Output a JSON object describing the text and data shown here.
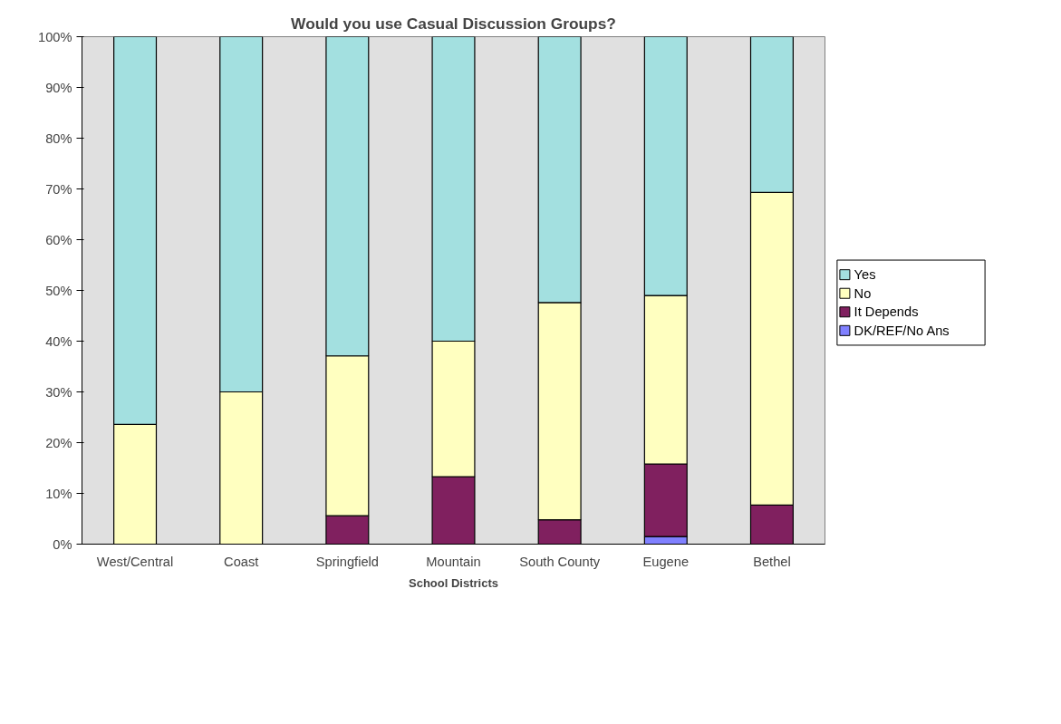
{
  "chart_data": {
    "type": "bar",
    "stacked": true,
    "title": "Would you use Casual Discussion Groups?",
    "xlabel": "School Districts",
    "categories": [
      "West/Central",
      "Coast",
      "Springfield",
      "Mountain",
      "South County",
      "Eugene",
      "Bethel"
    ],
    "series": [
      {
        "name": "DK/REF/No Ans",
        "color": "#8080ff",
        "values": [
          0,
          0,
          0,
          0,
          0,
          1.5,
          0
        ]
      },
      {
        "name": "It Depends",
        "color": "#80205f",
        "values": [
          0,
          0,
          5.6,
          13.3,
          4.8,
          14.3,
          7.7
        ]
      },
      {
        "name": "No",
        "color": "#ffffc0",
        "values": [
          23.6,
          30,
          31.5,
          26.7,
          42.8,
          33.2,
          61.6
        ]
      },
      {
        "name": "Yes",
        "color": "#a3e0e0",
        "values": [
          76.4,
          70,
          62.9,
          60,
          52.4,
          51,
          30.7
        ]
      }
    ],
    "ylim": [
      0,
      100
    ],
    "yticks": [
      {
        "value": 0,
        "label": "0%"
      },
      {
        "value": 10,
        "label": "10%"
      },
      {
        "value": 20,
        "label": "20%"
      },
      {
        "value": 30,
        "label": "30%"
      },
      {
        "value": 40,
        "label": "40%"
      },
      {
        "value": 50,
        "label": "50%"
      },
      {
        "value": 60,
        "label": "60%"
      },
      {
        "value": 70,
        "label": "70%"
      },
      {
        "value": 80,
        "label": "80%"
      },
      {
        "value": 90,
        "label": "90%"
      },
      {
        "value": 100,
        "label": "100%"
      }
    ],
    "grid": false,
    "legend": "right"
  }
}
